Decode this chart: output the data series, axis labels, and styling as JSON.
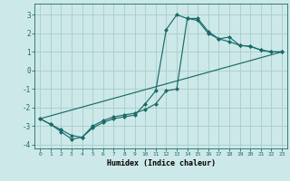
{
  "xlabel": "Humidex (Indice chaleur)",
  "bg_color": "#cde8e8",
  "grid_color": "#a8cccc",
  "line_color": "#1a6b6b",
  "xlim": [
    -0.5,
    23.5
  ],
  "ylim": [
    -4.2,
    3.6
  ],
  "yticks": [
    -4,
    -3,
    -2,
    -1,
    0,
    1,
    2,
    3
  ],
  "xticks": [
    0,
    1,
    2,
    3,
    4,
    5,
    6,
    7,
    8,
    9,
    10,
    11,
    12,
    13,
    14,
    15,
    16,
    17,
    18,
    19,
    20,
    21,
    22,
    23
  ],
  "lines": [
    {
      "x": [
        0,
        1,
        2,
        3,
        4,
        5,
        6,
        7,
        8,
        9,
        10,
        11,
        12,
        13,
        14,
        15,
        16,
        17,
        18,
        19,
        20,
        21,
        22,
        23
      ],
      "y": [
        -2.6,
        -2.9,
        -3.3,
        -3.7,
        -3.6,
        -3.1,
        -2.8,
        -2.6,
        -2.5,
        -2.4,
        -1.8,
        -1.1,
        2.2,
        3.0,
        2.8,
        2.8,
        2.1,
        1.7,
        1.8,
        1.35,
        1.3,
        1.1,
        1.0,
        1.0
      ]
    },
    {
      "x": [
        0,
        23
      ],
      "y": [
        -2.6,
        1.0
      ]
    },
    {
      "x": [
        0,
        1,
        2,
        3,
        4,
        5,
        6,
        7,
        8,
        9,
        10,
        11,
        12,
        13,
        14,
        15,
        16,
        17,
        18,
        19,
        20,
        21,
        22,
        23
      ],
      "y": [
        -2.6,
        -2.9,
        -3.2,
        -3.5,
        -3.6,
        -3.0,
        -2.7,
        -2.5,
        -2.4,
        -2.3,
        -2.1,
        -1.8,
        -1.1,
        -1.0,
        2.8,
        2.7,
        2.0,
        1.7,
        1.55,
        1.35,
        1.3,
        1.1,
        1.0,
        1.0
      ]
    }
  ],
  "marker": "D",
  "markersize": 2.0,
  "linewidth": 0.85
}
